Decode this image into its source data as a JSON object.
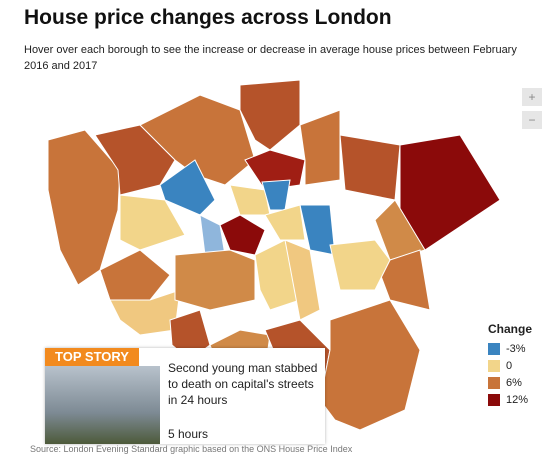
{
  "header": {
    "title": "House price changes across London",
    "subtitle": "Hover over each borough to see the increase or decrease in average house prices between February 2016 and 2017"
  },
  "zoom": {
    "in": "+",
    "out": "−"
  },
  "legend": {
    "title": "Change",
    "items": [
      {
        "label": "-3%",
        "color": "#3a84c0"
      },
      {
        "label": "0",
        "color": "#f2d58a"
      },
      {
        "label": "6%",
        "color": "#c8743a"
      },
      {
        "label": "12%",
        "color": "#8b0a0a"
      }
    ]
  },
  "story": {
    "tag": "TOP STORY",
    "headline": "Second young man stabbed to death on capital's streets in 24 hours",
    "time": "5 hours"
  },
  "source": "Source: London Evening Standard graphic based on the ONS House Price Index"
}
